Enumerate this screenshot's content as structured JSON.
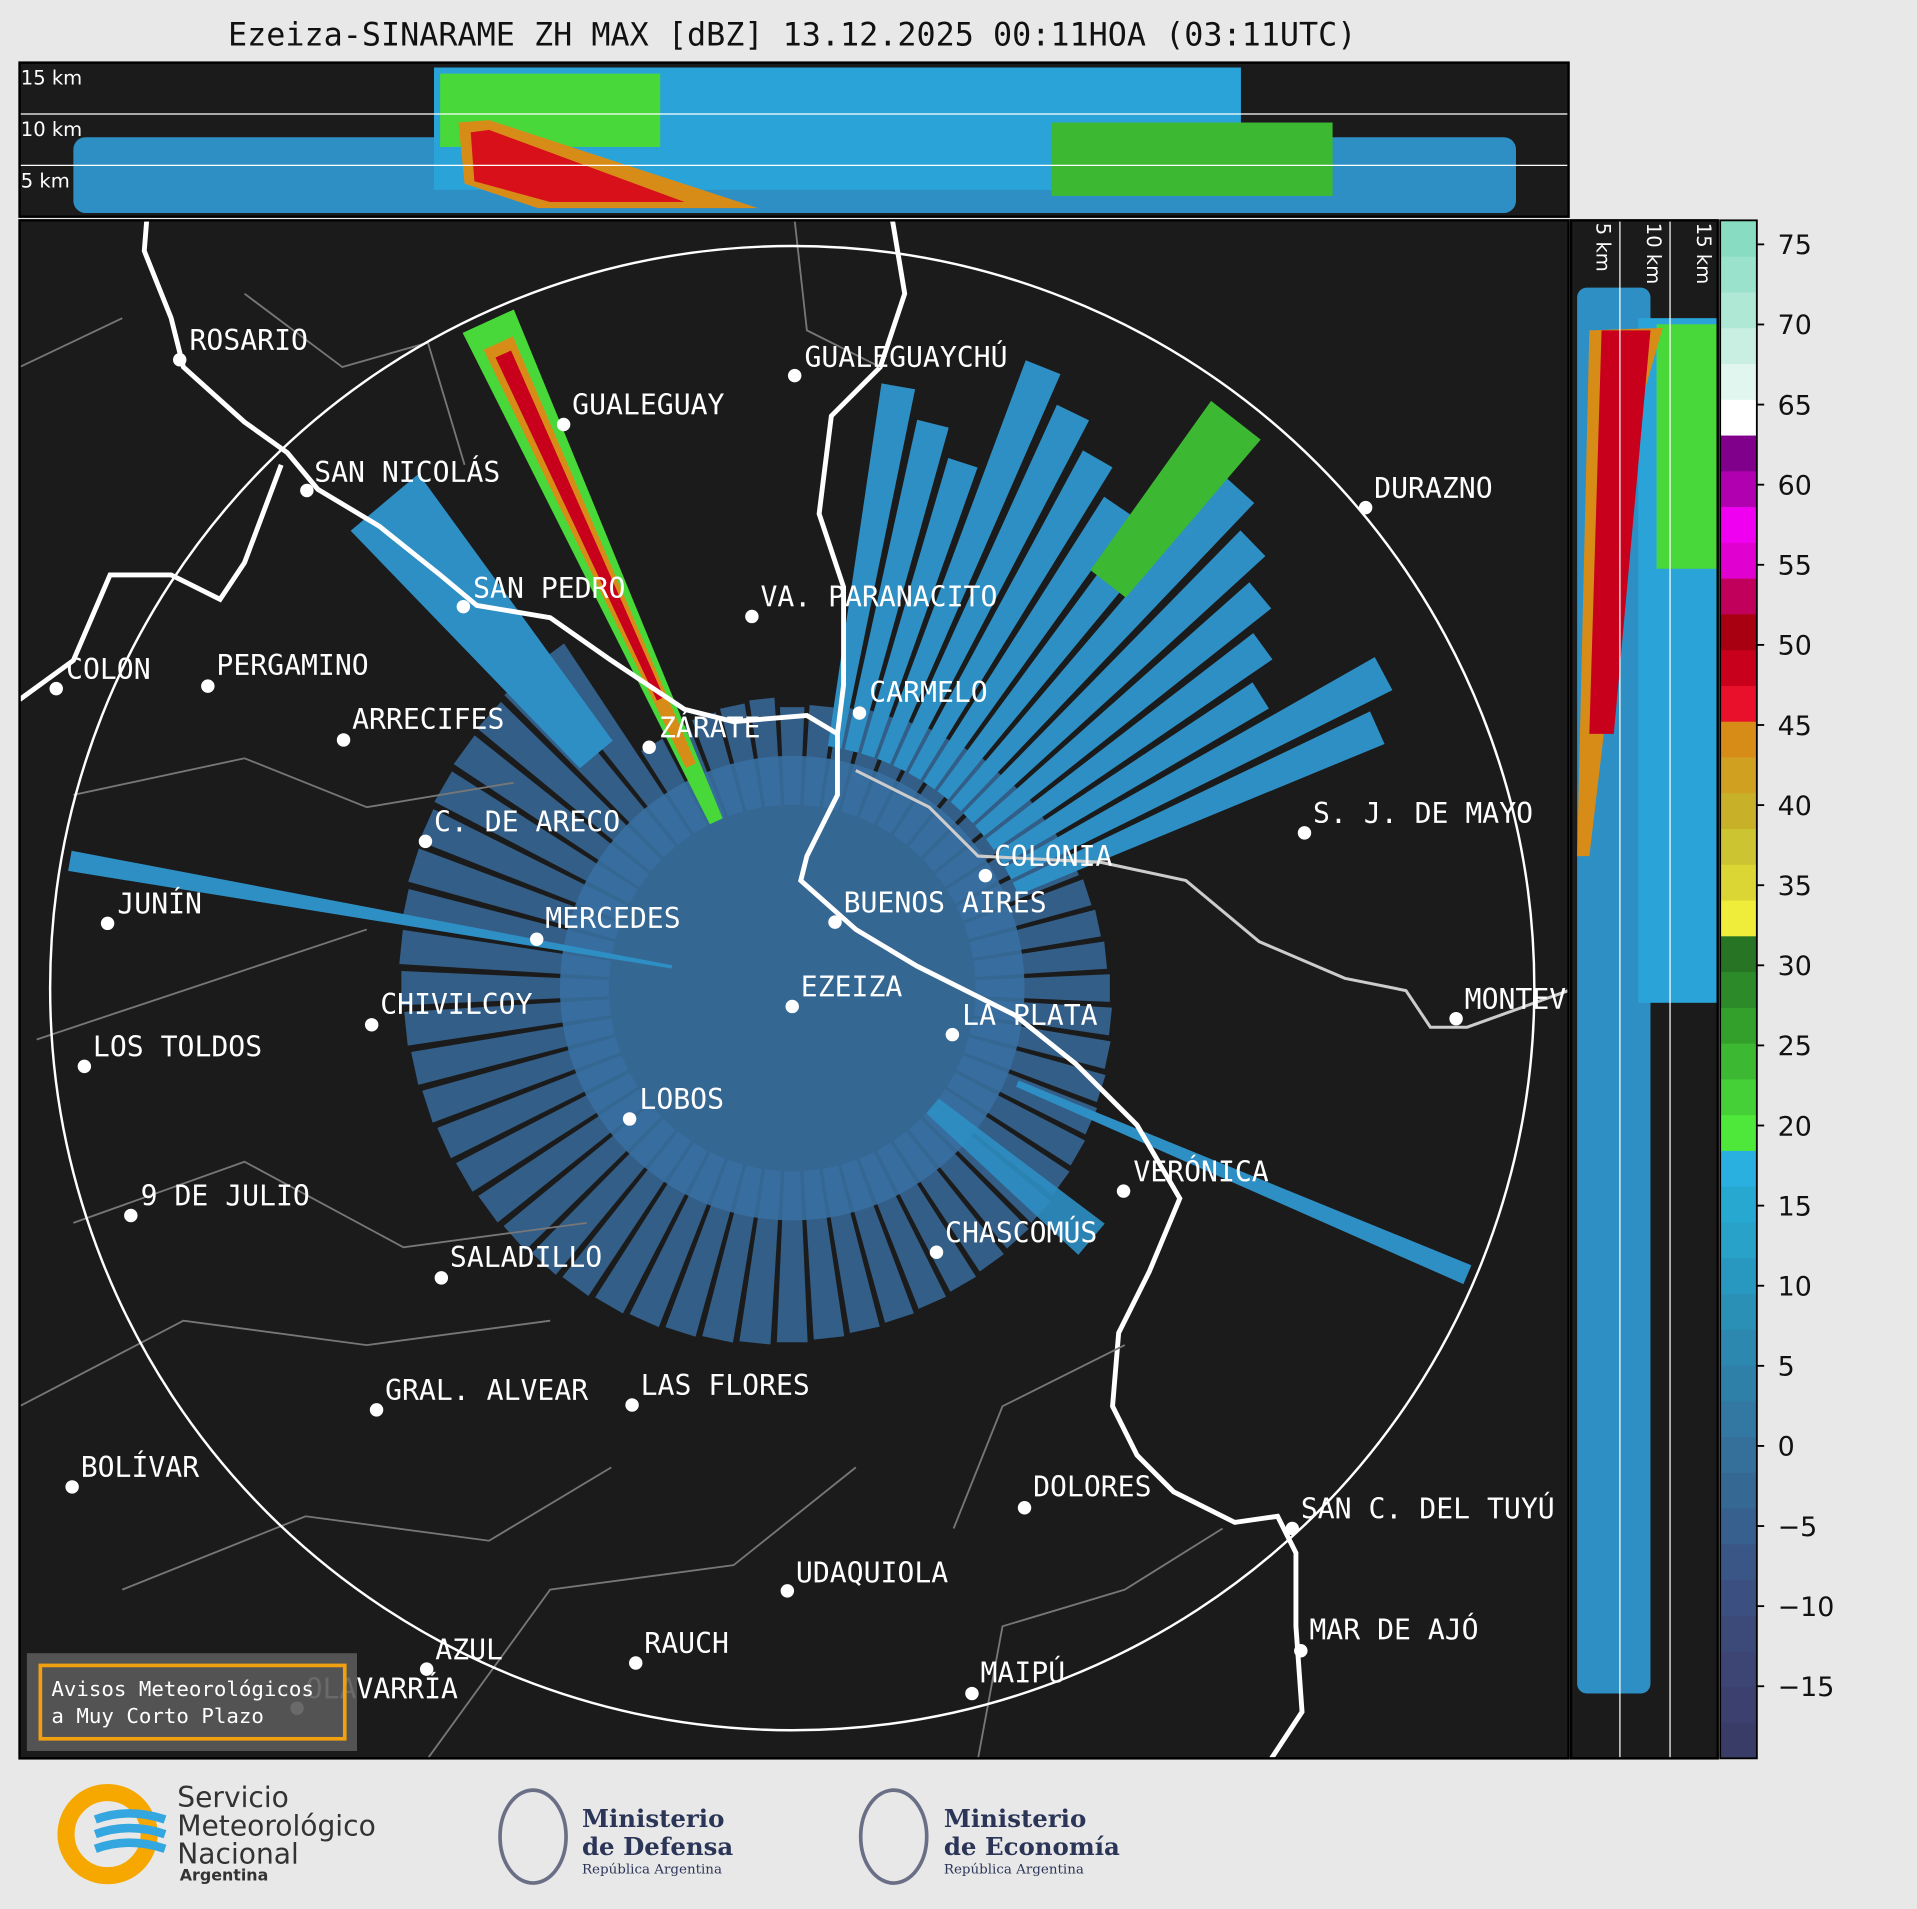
{
  "title": "Ezeiza-SINARAME ZH MAX [dBZ] 13.12.2025 00:11HOA (03:11UTC)",
  "top_panel": {
    "labels": [
      "15 km",
      "10 km",
      "5 km"
    ]
  },
  "side_panel": {
    "labels": [
      "5 km",
      "10 km",
      "15 km"
    ]
  },
  "cities": [
    "ROSARIO",
    "GUALEGUAYCHÚ",
    "GUALEGUAY",
    "SAN NICOLÁS",
    "DURAZNO",
    "SAN PEDRO",
    "VA. PARANACITO",
    "COLON",
    "PERGAMINO",
    "CARMELO",
    "ARRECIFES",
    "ZÁRATE",
    "S. J. DE MAYO",
    "C. DE ARECO",
    "COLONIA",
    "BUENOS AIRES",
    "JUNÍN",
    "MERCEDES",
    "MONTEV",
    "EZEIZA",
    "CHIVILCOY",
    "LA PLATA",
    "LOS TOLDOS",
    "LOBOS",
    "VERÓNICA",
    "9 DE JULIO",
    "CHASCOMÚS",
    "SALADILLO",
    "GRAL. ALVEAR",
    "LAS FLORES",
    "BOLÍVAR",
    "DOLORES",
    "SAN C. DEL TUYÚ",
    "UDAQUIOLA",
    "MAR DE AJÓ",
    "RAUCH",
    "AZUL",
    "OLAVARRÍA",
    "MAIPÚ"
  ],
  "colorbar": {
    "ylim": [
      -19.5,
      76.5
    ],
    "yticks": [
      75,
      70,
      65,
      60,
      55,
      50,
      45,
      40,
      35,
      30,
      25,
      20,
      15,
      10,
      5,
      0,
      {
        "value": -5,
        "label": "−5"
      },
      {
        "value": -10,
        "label": "−10"
      },
      {
        "value": -15,
        "label": "−15"
      }
    ],
    "colors": [
      "#3a3c68",
      "#3b406e",
      "#3c4574",
      "#3c4a7a",
      "#3b5080",
      "#3a5686",
      "#38608e",
      "#366894",
      "#34709a",
      "#3278a2",
      "#2f80a8",
      "#2d88b0",
      "#2b90b6",
      "#2998c0",
      "#28a2c8",
      "#26a8d0",
      "#2ab0e0",
      "#4ee83a",
      "#44d036",
      "#3cb832",
      "#34a02c",
      "#2c8a28",
      "#267424",
      "#f0ec3a",
      "#dcd634",
      "#ccc430",
      "#c8b028",
      "#d0a020",
      "#d88c18",
      "#e8102a",
      "#c8001c",
      "#a80010",
      "#c0005a",
      "#e000d0",
      "#f000f0",
      "#b000b0",
      "#80008c",
      "#ffffff",
      "#e0f6ee",
      "#c8efe2",
      "#b0e8d6",
      "#9ae2cc",
      "#88dcc2"
    ]
  },
  "notice": {
    "lines": [
      "Avisos Meteorológicos",
      "a Muy Corto Plazo"
    ]
  },
  "logos": {
    "smn": [
      "Servicio",
      "Meteorológico",
      "Nacional",
      "Argentina"
    ],
    "defensa": [
      "Ministerio",
      "de Defensa",
      "República Argentina"
    ],
    "economia": [
      "Ministerio",
      "de Economía",
      "República Argentina"
    ]
  }
}
